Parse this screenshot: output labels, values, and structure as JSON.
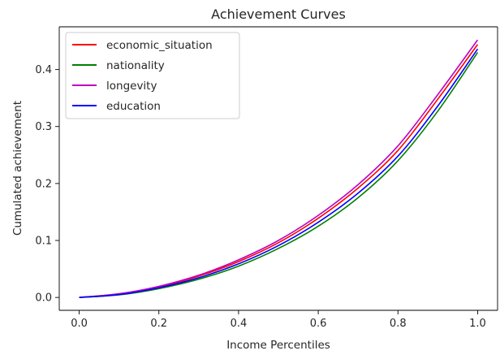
{
  "chart_data": {
    "type": "line",
    "title": "Achievement Curves",
    "xlabel": "Income Percentiles",
    "ylabel": "Cumulated achievement",
    "xlim": [
      -0.05,
      1.05
    ],
    "ylim": [
      -0.0226,
      0.475
    ],
    "xticks": [
      0.0,
      0.2,
      0.4,
      0.6,
      0.8,
      1.0
    ],
    "xtick_labels": [
      "0.0",
      "0.2",
      "0.4",
      "0.6",
      "0.8",
      "1.0"
    ],
    "yticks": [
      0.0,
      0.1,
      0.2,
      0.3,
      0.4
    ],
    "ytick_labels": [
      "0.0",
      "0.1",
      "0.2",
      "0.3",
      "0.4"
    ],
    "grid": false,
    "legend_position": "upper-left",
    "x": [
      0.0,
      0.1,
      0.2,
      0.3,
      0.4,
      0.5,
      0.6,
      0.7,
      0.8,
      0.9,
      1.0
    ],
    "series": [
      {
        "name": "economic_situation",
        "color": "#ff0000",
        "values": [
          0.0,
          0.006,
          0.0185,
          0.0375,
          0.063,
          0.096,
          0.139,
          0.192,
          0.258,
          0.348,
          0.444
        ]
      },
      {
        "name": "nationality",
        "color": "#008000",
        "values": [
          0.0,
          0.0045,
          0.0155,
          0.032,
          0.055,
          0.086,
          0.125,
          0.175,
          0.24,
          0.327,
          0.43
        ]
      },
      {
        "name": "longevity",
        "color": "#bf00bf",
        "values": [
          0.0,
          0.0065,
          0.0195,
          0.039,
          0.066,
          0.1,
          0.144,
          0.198,
          0.266,
          0.356,
          0.452
        ]
      },
      {
        "name": "education",
        "color": "#0000ff",
        "values": [
          0.0,
          0.005,
          0.017,
          0.0345,
          0.059,
          0.091,
          0.132,
          0.183,
          0.248,
          0.336,
          0.436
        ]
      }
    ]
  }
}
